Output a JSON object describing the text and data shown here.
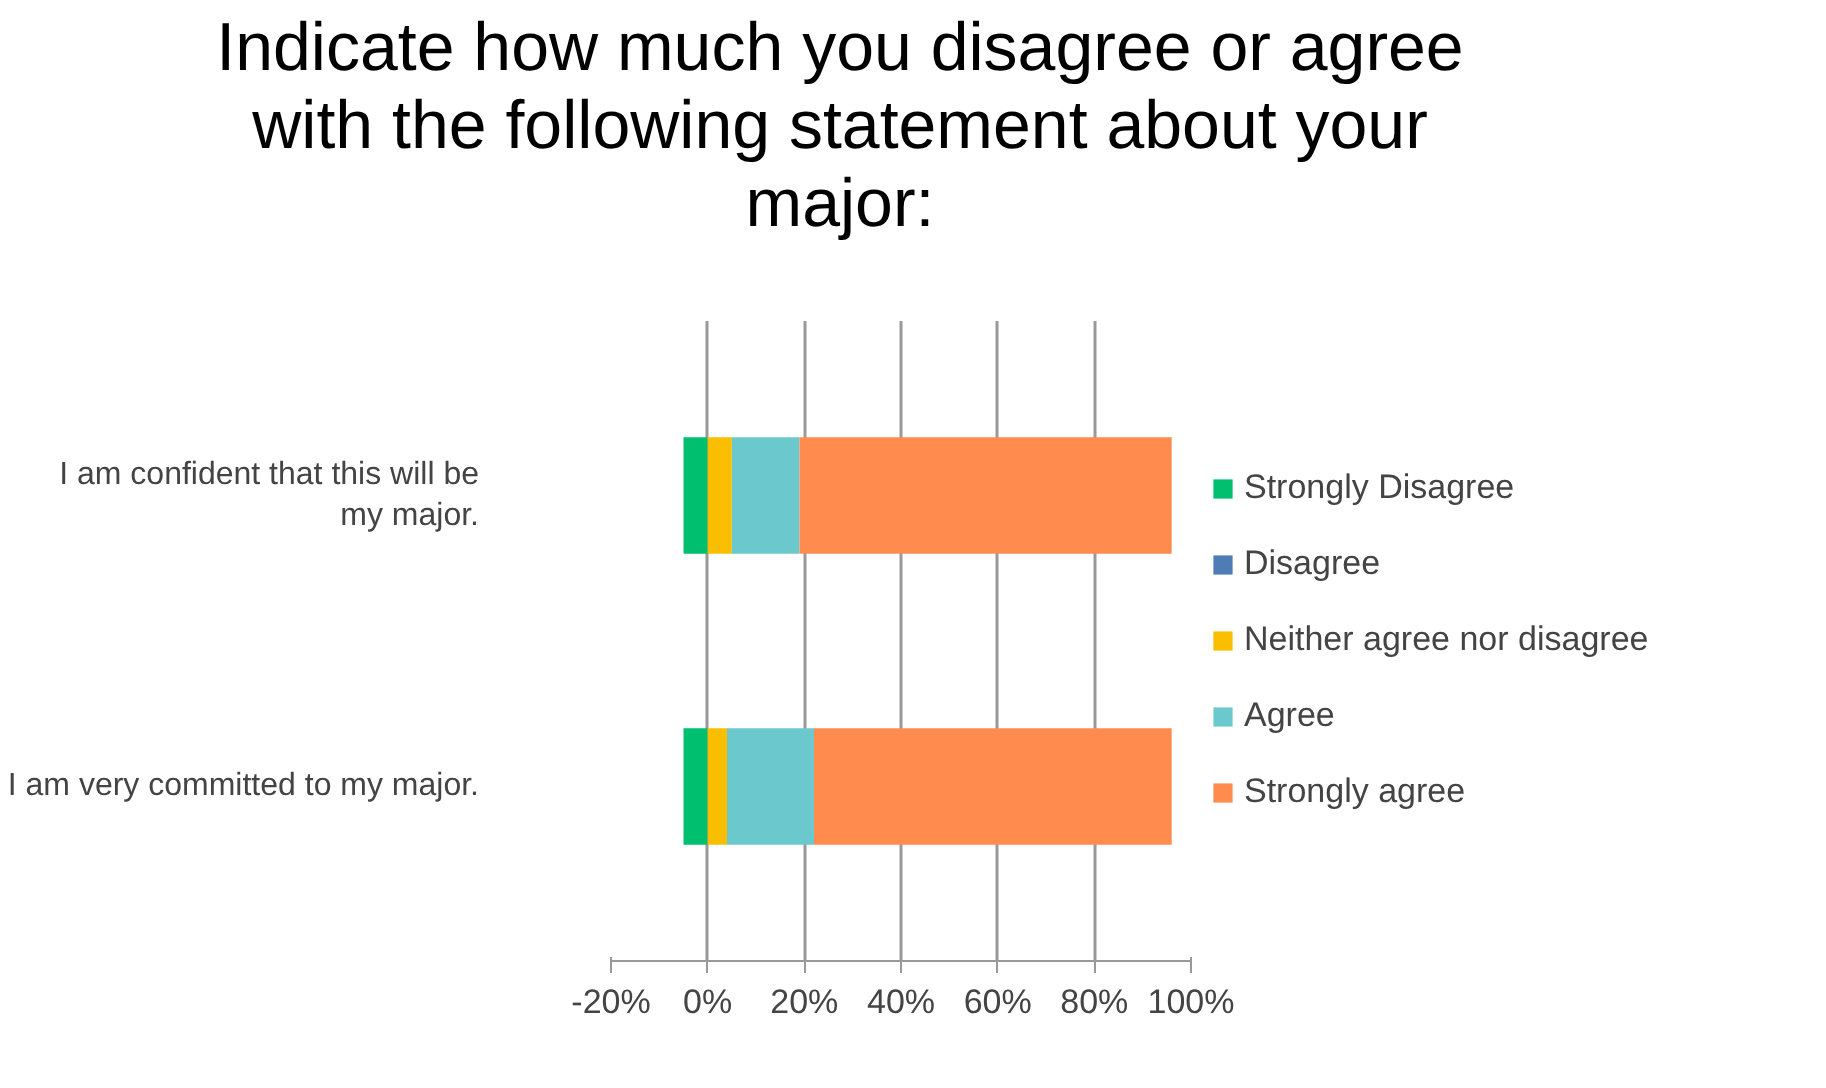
{
  "chart_data": {
    "type": "bar",
    "orientation": "horizontal",
    "stacked": true,
    "title": "Indicate how much you disagree or agree with the following statement about your major:",
    "categories": [
      "I am confident that this will be my major.",
      "I am very committed to my major."
    ],
    "series": [
      {
        "name": "Strongly Disagree",
        "color": "#00bf6f",
        "values": [
          -5,
          -5
        ]
      },
      {
        "name": "Disagree",
        "color": "#507cb6",
        "values": [
          0,
          0
        ]
      },
      {
        "name": "Neither agree nor disagree",
        "color": "#f9be00",
        "values": [
          5,
          4
        ]
      },
      {
        "name": "Agree",
        "color": "#6bc8cd",
        "values": [
          14,
          18
        ]
      },
      {
        "name": "Strongly agree",
        "color": "#ff8b4f",
        "values": [
          77,
          74
        ]
      }
    ],
    "xlim": [
      -20,
      100
    ],
    "xticks": [
      {
        "value": -20,
        "label": "-20%"
      },
      {
        "value": 0,
        "label": "0%"
      },
      {
        "value": 20,
        "label": "20%"
      },
      {
        "value": 40,
        "label": "40%"
      },
      {
        "value": 60,
        "label": "60%"
      },
      {
        "value": 80,
        "label": "80%"
      },
      {
        "value": 100,
        "label": "100%"
      }
    ],
    "grid": "x",
    "legend": "right"
  }
}
